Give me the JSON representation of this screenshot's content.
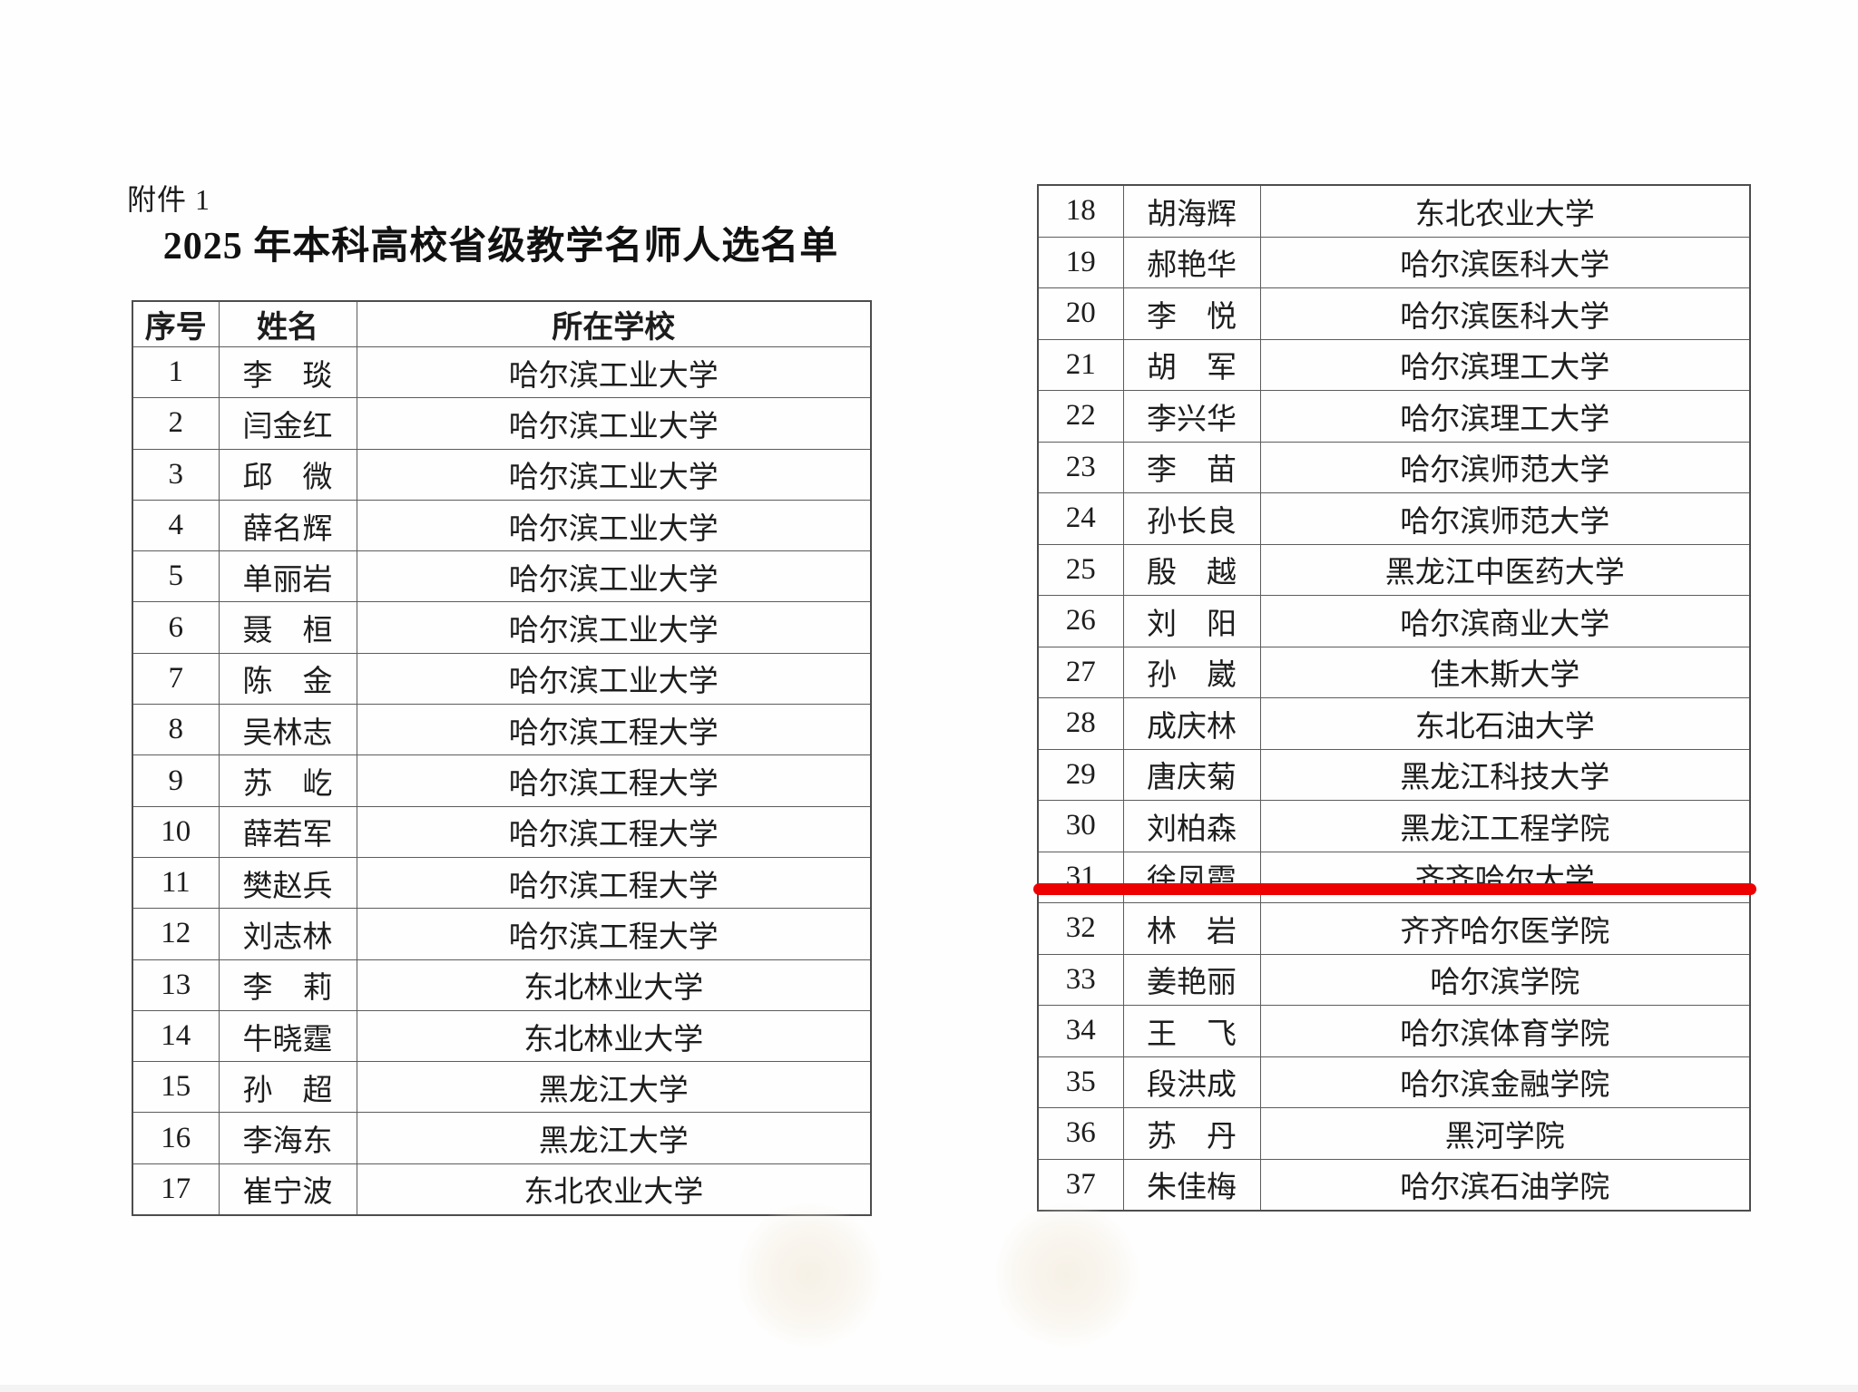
{
  "page": {
    "attachment_label": "附件 1",
    "title": "2025 年本科高校省级教学名师人选名单",
    "background_color": "#fefefe"
  },
  "highlight": {
    "color": "#ec0000",
    "underlined_row_no": "31"
  },
  "table": {
    "headers": [
      "序号",
      "姓名",
      "所在学校"
    ],
    "left_rows": [
      {
        "no": "1",
        "name": "李　琰",
        "school": "哈尔滨工业大学"
      },
      {
        "no": "2",
        "name": "闫金红",
        "school": "哈尔滨工业大学"
      },
      {
        "no": "3",
        "name": "邱　微",
        "school": "哈尔滨工业大学"
      },
      {
        "no": "4",
        "name": "薛名辉",
        "school": "哈尔滨工业大学"
      },
      {
        "no": "5",
        "name": "单丽岩",
        "school": "哈尔滨工业大学"
      },
      {
        "no": "6",
        "name": "聂　桓",
        "school": "哈尔滨工业大学"
      },
      {
        "no": "7",
        "name": "陈　金",
        "school": "哈尔滨工业大学"
      },
      {
        "no": "8",
        "name": "吴林志",
        "school": "哈尔滨工程大学"
      },
      {
        "no": "9",
        "name": "苏　屹",
        "school": "哈尔滨工程大学"
      },
      {
        "no": "10",
        "name": "薛若军",
        "school": "哈尔滨工程大学"
      },
      {
        "no": "11",
        "name": "樊赵兵",
        "school": "哈尔滨工程大学"
      },
      {
        "no": "12",
        "name": "刘志林",
        "school": "哈尔滨工程大学"
      },
      {
        "no": "13",
        "name": "李　莉",
        "school": "东北林业大学"
      },
      {
        "no": "14",
        "name": "牛晓霆",
        "school": "东北林业大学"
      },
      {
        "no": "15",
        "name": "孙　超",
        "school": "黑龙江大学"
      },
      {
        "no": "16",
        "name": "李海东",
        "school": "黑龙江大学"
      },
      {
        "no": "17",
        "name": "崔宁波",
        "school": "东北农业大学"
      }
    ],
    "right_rows": [
      {
        "no": "18",
        "name": "胡海辉",
        "school": "东北农业大学"
      },
      {
        "no": "19",
        "name": "郝艳华",
        "school": "哈尔滨医科大学"
      },
      {
        "no": "20",
        "name": "李　悦",
        "school": "哈尔滨医科大学"
      },
      {
        "no": "21",
        "name": "胡　军",
        "school": "哈尔滨理工大学"
      },
      {
        "no": "22",
        "name": "李兴华",
        "school": "哈尔滨理工大学"
      },
      {
        "no": "23",
        "name": "李　苗",
        "school": "哈尔滨师范大学"
      },
      {
        "no": "24",
        "name": "孙长良",
        "school": "哈尔滨师范大学"
      },
      {
        "no": "25",
        "name": "殷　越",
        "school": "黑龙江中医药大学"
      },
      {
        "no": "26",
        "name": "刘　阳",
        "school": "哈尔滨商业大学"
      },
      {
        "no": "27",
        "name": "孙　崴",
        "school": "佳木斯大学"
      },
      {
        "no": "28",
        "name": "成庆林",
        "school": "东北石油大学"
      },
      {
        "no": "29",
        "name": "唐庆菊",
        "school": "黑龙江科技大学"
      },
      {
        "no": "30",
        "name": "刘柏森",
        "school": "黑龙江工程学院"
      },
      {
        "no": "31",
        "name": "徐凤霞",
        "school": "齐齐哈尔大学"
      },
      {
        "no": "32",
        "name": "林　岩",
        "school": "齐齐哈尔医学院"
      },
      {
        "no": "33",
        "name": "姜艳丽",
        "school": "哈尔滨学院"
      },
      {
        "no": "34",
        "name": "王　飞",
        "school": "哈尔滨体育学院"
      },
      {
        "no": "35",
        "name": "段洪成",
        "school": "哈尔滨金融学院"
      },
      {
        "no": "36",
        "name": "苏　丹",
        "school": "黑河学院"
      },
      {
        "no": "37",
        "name": "朱佳梅",
        "school": "哈尔滨石油学院"
      }
    ]
  }
}
